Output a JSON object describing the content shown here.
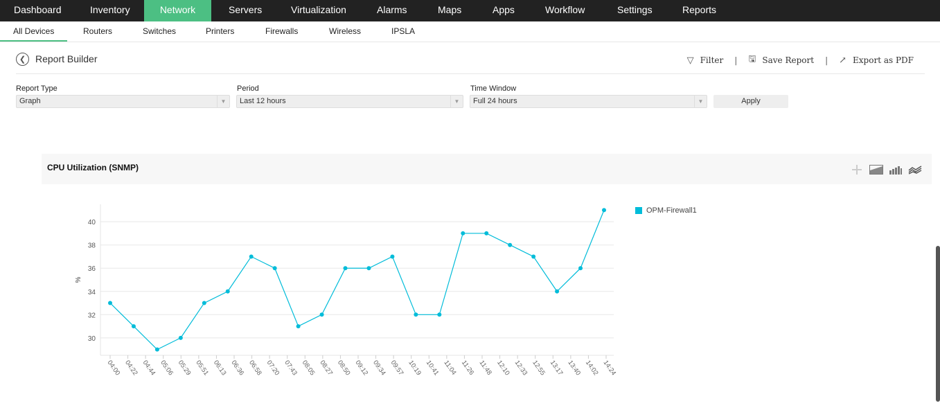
{
  "topnav": {
    "items": [
      "Dashboard",
      "Inventory",
      "Network",
      "Servers",
      "Virtualization",
      "Alarms",
      "Maps",
      "Apps",
      "Workflow",
      "Settings",
      "Reports"
    ],
    "active": "Network"
  },
  "subnav": {
    "items": [
      "All Devices",
      "Routers",
      "Switches",
      "Printers",
      "Firewalls",
      "Wireless",
      "IPSLA"
    ],
    "active": "All Devices"
  },
  "header": {
    "title": "Report Builder",
    "actions": {
      "filter": "Filter",
      "save": "Save Report",
      "export": "Export as PDF"
    }
  },
  "form": {
    "report_type": {
      "label": "Report Type",
      "value": "Graph"
    },
    "period": {
      "label": "Period",
      "value": "Last 12 hours"
    },
    "time_window": {
      "label": "Time Window",
      "value": "Full 24 hours"
    },
    "apply": "Apply"
  },
  "colors": {
    "accent": "#4cbf83",
    "series": "#00bcd9",
    "nav_bg": "#222222"
  },
  "chart_data": {
    "type": "line",
    "title": "CPU Utilization (SNMP)",
    "ylabel": "%",
    "xlabel": "",
    "ylim": [
      28.5,
      41.5
    ],
    "yticks": [
      30,
      32,
      34,
      36,
      38,
      40
    ],
    "xticks": [
      "04:00",
      "04:22",
      "04:44",
      "05:06",
      "05:29",
      "05:51",
      "06:13",
      "06:36",
      "06:58",
      "07:20",
      "07:43",
      "08:05",
      "08:27",
      "08:50",
      "09:12",
      "09:34",
      "09:57",
      "10:19",
      "10:41",
      "11:04",
      "11:26",
      "11:48",
      "12:10",
      "12:33",
      "12:55",
      "13:17",
      "13:40",
      "14:02",
      "14:24"
    ],
    "grid": true,
    "legend_position": "right",
    "series": [
      {
        "name": "OPM-Firewall1",
        "values": [
          33,
          31,
          29,
          30,
          33,
          34,
          37,
          36,
          31,
          32,
          36,
          36,
          37,
          32,
          32,
          39,
          39,
          38,
          37,
          34,
          36,
          41
        ]
      }
    ]
  }
}
